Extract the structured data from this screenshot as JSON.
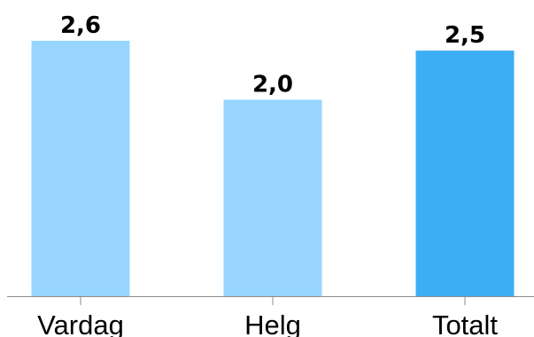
{
  "chart_data": {
    "type": "bar",
    "title": "",
    "xlabel": "",
    "ylabel": "",
    "categories": [
      "Vardag",
      "Helg",
      "Totalt"
    ],
    "values": [
      2.6,
      2.0,
      2.5
    ],
    "value_labels": [
      "2,6",
      "2,0",
      "2,5"
    ],
    "ylim": [
      0,
      2.6
    ],
    "grid": false,
    "colors": [
      "#97D5FF",
      "#97D5FF",
      "#3CAEF4"
    ]
  }
}
